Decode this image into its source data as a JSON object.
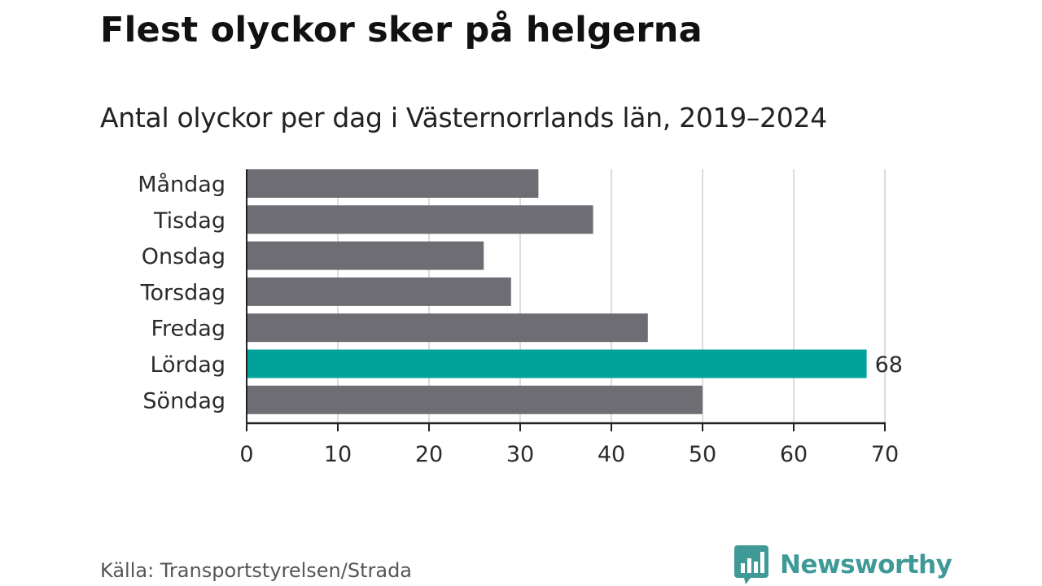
{
  "title": "Flest olyckor sker på helgerna",
  "subtitle": "Antal olyckor per dag i Västernorrlands län, 2019–2024",
  "source": "Källa: Transportstyrelsen/Strada",
  "brand": {
    "name": "Newsworthy",
    "color": "#3f9a97"
  },
  "chart_data": {
    "type": "bar",
    "orientation": "horizontal",
    "categories": [
      "Måndag",
      "Tisdag",
      "Onsdag",
      "Torsdag",
      "Fredag",
      "Lördag",
      "Söndag"
    ],
    "values": [
      32,
      38,
      26,
      29,
      44,
      68,
      50
    ],
    "highlight_index": 5,
    "data_labels": [
      {
        "index": 5,
        "text": "68"
      }
    ],
    "title": "Flest olyckor sker på helgerna",
    "subtitle": "Antal olyckor per dag i Västernorrlands län, 2019–2024",
    "xlabel": "",
    "ylabel": "",
    "xlim": [
      0,
      70
    ],
    "xticks": [
      0,
      10,
      20,
      30,
      40,
      50,
      60,
      70
    ],
    "grid": "vertical",
    "colors": {
      "bar": "#6e6d73",
      "highlight": "#00a29a",
      "grid": "#dcdcdc",
      "axis": "#222222"
    }
  }
}
